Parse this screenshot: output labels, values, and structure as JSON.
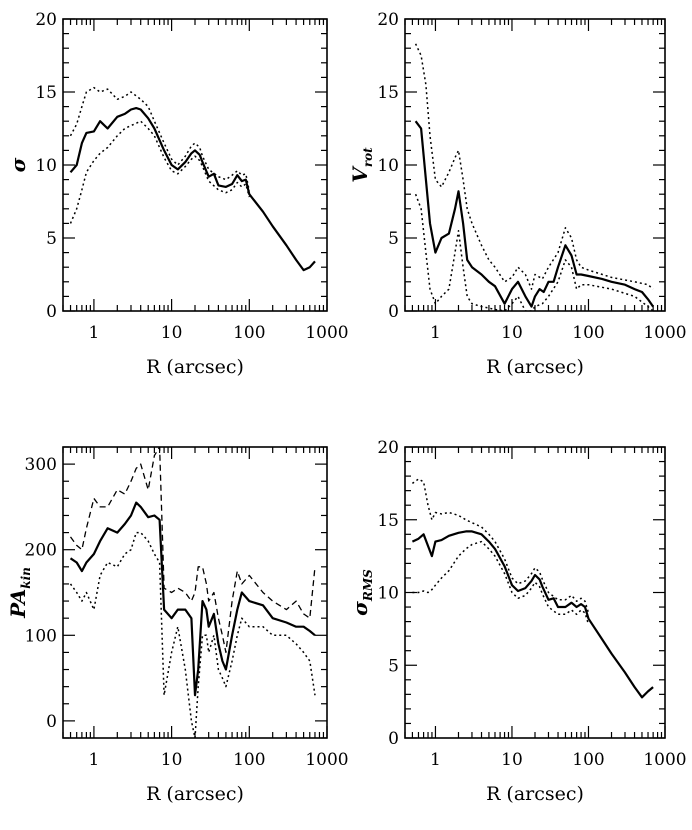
{
  "chart_data": [
    {
      "type": "line",
      "title": "",
      "xlabel": "R (arcsec)",
      "ylabel": "σ",
      "xscale": "log",
      "xlim": [
        0.4,
        1000
      ],
      "ylim": [
        0,
        20
      ],
      "xticks": [
        "1",
        "10",
        "100",
        "1000"
      ],
      "yticks": [
        "0",
        "5",
        "10",
        "15",
        "20"
      ],
      "grid": false,
      "series": [
        {
          "style": "solid",
          "x": [
            0.5,
            0.6,
            0.7,
            0.8,
            1.0,
            1.2,
            1.5,
            2,
            2.5,
            3,
            3.5,
            4,
            5,
            6,
            8,
            10,
            12,
            15,
            18,
            20,
            23,
            25,
            30,
            35,
            40,
            50,
            60,
            70,
            80,
            90,
            100,
            150,
            200,
            300,
            400,
            500,
            600,
            700
          ],
          "y": [
            9.5,
            10,
            11.5,
            12.2,
            12.3,
            13,
            12.5,
            13.3,
            13.5,
            13.8,
            13.9,
            13.8,
            13.2,
            12.5,
            11,
            10,
            9.7,
            10.2,
            10.8,
            11,
            10.7,
            10.2,
            9.2,
            9.4,
            8.6,
            8.5,
            8.7,
            9.3,
            8.9,
            9,
            8,
            6.8,
            5.8,
            4.5,
            3.5,
            2.8,
            3,
            3.4
          ]
        },
        {
          "style": "dotted",
          "x": [
            0.5,
            0.6,
            0.7,
            0.8,
            1.0,
            1.2,
            1.5,
            2,
            2.5,
            3,
            4,
            5,
            6,
            8,
            10,
            12,
            15,
            18,
            20,
            23,
            25,
            30,
            40,
            50,
            60,
            70,
            80,
            90,
            100
          ],
          "y": [
            12,
            12.8,
            14,
            15,
            15.3,
            15,
            15.2,
            14.5,
            14.7,
            15,
            14.5,
            14,
            13,
            11.5,
            10.4,
            10,
            10.6,
            11.3,
            11.5,
            11.2,
            10.6,
            9.7,
            9.2,
            9,
            9.3,
            9.6,
            9.3,
            9.4,
            8.2
          ]
        },
        {
          "style": "dotted",
          "x": [
            0.5,
            0.6,
            0.7,
            0.8,
            1.0,
            1.2,
            1.5,
            2,
            2.5,
            3,
            4,
            5,
            6,
            8,
            10,
            12,
            15,
            18,
            20,
            23,
            25,
            30,
            40,
            50,
            60,
            70,
            80,
            90,
            100
          ],
          "y": [
            6,
            7,
            8.3,
            9.5,
            10.3,
            10.8,
            11.2,
            12,
            12.5,
            12.7,
            13,
            12.5,
            12,
            10.5,
            9.6,
            9.4,
            9.9,
            10.4,
            10.6,
            10.3,
            9.9,
            8.9,
            8.3,
            8.1,
            8.3,
            8.8,
            8.5,
            8.7,
            7.8
          ]
        }
      ]
    },
    {
      "type": "line",
      "title": "",
      "xlabel": "R (arcsec)",
      "ylabel": "V rot",
      "xscale": "log",
      "xlim": [
        0.4,
        1000
      ],
      "ylim": [
        0,
        20
      ],
      "xticks": [
        "1",
        "10",
        "100",
        "1000"
      ],
      "yticks": [
        "0",
        "5",
        "10",
        "15",
        "20"
      ],
      "grid": false,
      "series": [
        {
          "style": "solid",
          "x": [
            0.55,
            0.65,
            0.75,
            0.85,
            1.0,
            1.2,
            1.5,
            1.8,
            2.0,
            2.3,
            2.6,
            3,
            4,
            5,
            6,
            8,
            10,
            12,
            15,
            18,
            20,
            23,
            26,
            30,
            35,
            40,
            50,
            60,
            70,
            80,
            100,
            150,
            200,
            300,
            400,
            500,
            600,
            700
          ],
          "y": [
            13,
            12.5,
            9,
            6,
            4,
            5,
            5.3,
            7,
            8.2,
            6,
            3.5,
            3,
            2.5,
            2,
            1.7,
            0.5,
            1.5,
            2,
            1,
            0.3,
            1,
            1.5,
            1.3,
            2,
            2,
            3,
            4.5,
            3.8,
            2.5,
            2.5,
            2.4,
            2.2,
            2,
            1.8,
            1.5,
            1.3,
            0.8,
            0.3
          ]
        },
        {
          "style": "dotted",
          "x": [
            0.55,
            0.65,
            0.75,
            0.85,
            1.0,
            1.2,
            1.5,
            1.8,
            2.0,
            2.3,
            2.6,
            3,
            4,
            5,
            6,
            8,
            10,
            12,
            15,
            18,
            20,
            25,
            30,
            40,
            50,
            60,
            70,
            80,
            100,
            200,
            400,
            600,
            700
          ],
          "y": [
            18.3,
            17.5,
            15.5,
            12,
            9,
            8.5,
            9.5,
            10.5,
            11,
            9,
            7,
            6,
            4.5,
            3.5,
            3,
            2,
            2.3,
            3,
            2.5,
            1.5,
            2.5,
            2.2,
            3,
            4,
            5.7,
            5,
            3.5,
            3,
            2.8,
            2.3,
            2,
            1.8,
            1.5
          ]
        },
        {
          "style": "dotted",
          "x": [
            0.55,
            0.65,
            0.75,
            0.85,
            1.0,
            1.2,
            1.5,
            1.8,
            2.0,
            2.3,
            2.6,
            3,
            4,
            5,
            6,
            8,
            10,
            12,
            15,
            18,
            20,
            25,
            30,
            40,
            50,
            60,
            70,
            80,
            100,
            200,
            400,
            600,
            700
          ],
          "y": [
            8,
            7,
            4,
            1.5,
            0.5,
            1,
            1.5,
            4,
            5.5,
            3,
            1,
            0.5,
            0.3,
            0.2,
            0.1,
            0,
            0.5,
            1,
            0,
            0,
            0.3,
            0.5,
            1,
            2,
            3.5,
            3,
            1.5,
            1.8,
            1.8,
            1.5,
            1,
            0.3,
            0
          ]
        }
      ]
    },
    {
      "type": "line",
      "title": "",
      "xlabel": "R (arcsec)",
      "ylabel": "PA kin",
      "xscale": "log",
      "xlim": [
        0.4,
        1000
      ],
      "ylim": [
        -20,
        320
      ],
      "xticks": [
        "1",
        "10",
        "100",
        "1000"
      ],
      "yticks": [
        "0",
        "100",
        "200",
        "300"
      ],
      "grid": false,
      "series": [
        {
          "style": "solid",
          "x": [
            0.5,
            0.6,
            0.7,
            0.8,
            1.0,
            1.2,
            1.5,
            2,
            2.5,
            3,
            3.5,
            4,
            5,
            6,
            7,
            8,
            10,
            12,
            15,
            18,
            20,
            22,
            25,
            28,
            30,
            35,
            40,
            45,
            50,
            60,
            70,
            80,
            100,
            150,
            200,
            300,
            400,
            500,
            600,
            700
          ],
          "y": [
            190,
            185,
            175,
            185,
            195,
            210,
            225,
            220,
            230,
            240,
            255,
            250,
            238,
            240,
            235,
            130,
            120,
            130,
            130,
            120,
            30,
            60,
            140,
            130,
            110,
            125,
            90,
            70,
            60,
            100,
            130,
            150,
            140,
            135,
            120,
            115,
            110,
            110,
            105,
            100
          ]
        },
        {
          "style": "dashed",
          "x": [
            0.5,
            0.6,
            0.7,
            0.8,
            1.0,
            1.2,
            1.5,
            2,
            2.5,
            3,
            3.5,
            4,
            5,
            6,
            7,
            8,
            10,
            12,
            15,
            18,
            20,
            22,
            25,
            28,
            30,
            35,
            40,
            45,
            50,
            60,
            70,
            80,
            100,
            150,
            200,
            300,
            400,
            500,
            600,
            700
          ],
          "y": [
            215,
            205,
            200,
            225,
            260,
            250,
            250,
            270,
            265,
            280,
            295,
            300,
            270,
            310,
            320,
            155,
            150,
            155,
            150,
            140,
            150,
            180,
            180,
            160,
            140,
            150,
            120,
            100,
            80,
            140,
            175,
            160,
            170,
            150,
            140,
            130,
            140,
            125,
            120,
            180
          ]
        },
        {
          "style": "dotted",
          "x": [
            0.5,
            0.6,
            0.7,
            0.8,
            1.0,
            1.2,
            1.5,
            2,
            2.5,
            3,
            3.5,
            4,
            5,
            6,
            7,
            8,
            10,
            12,
            15,
            18,
            20,
            22,
            25,
            28,
            30,
            35,
            40,
            45,
            50,
            60,
            70,
            80,
            100,
            150,
            200,
            300,
            400,
            500,
            600,
            700
          ],
          "y": [
            160,
            150,
            140,
            150,
            130,
            170,
            185,
            180,
            195,
            200,
            220,
            220,
            210,
            195,
            185,
            30,
            80,
            110,
            60,
            0,
            -20,
            40,
            100,
            100,
            80,
            100,
            60,
            50,
            40,
            70,
            100,
            120,
            110,
            110,
            100,
            100,
            90,
            80,
            70,
            30
          ]
        }
      ]
    },
    {
      "type": "line",
      "title": "",
      "xlabel": "R (arcsec)",
      "ylabel": "σ RMS",
      "xscale": "log",
      "xlim": [
        0.4,
        1000
      ],
      "ylim": [
        0,
        20
      ],
      "xticks": [
        "1",
        "10",
        "100",
        "1000"
      ],
      "yticks": [
        "0",
        "5",
        "10",
        "15",
        "20"
      ],
      "grid": false,
      "series": [
        {
          "style": "solid",
          "x": [
            0.5,
            0.6,
            0.7,
            0.8,
            0.9,
            1.0,
            1.2,
            1.5,
            2,
            2.5,
            3,
            4,
            5,
            6,
            8,
            10,
            12,
            15,
            18,
            20,
            23,
            25,
            30,
            35,
            40,
            50,
            60,
            70,
            80,
            90,
            100,
            150,
            200,
            300,
            400,
            500,
            600,
            700
          ],
          "y": [
            13.5,
            13.7,
            14,
            13.2,
            12.5,
            13.5,
            13.6,
            13.9,
            14.1,
            14.2,
            14.2,
            14,
            13.5,
            13,
            11.8,
            10.5,
            10.1,
            10.3,
            10.8,
            11.2,
            10.9,
            10.4,
            9.5,
            9.6,
            9,
            9,
            9.3,
            9,
            9.2,
            9,
            8.2,
            6.8,
            5.8,
            4.5,
            3.5,
            2.8,
            3.2,
            3.5
          ]
        },
        {
          "style": "dotted",
          "x": [
            0.5,
            0.6,
            0.7,
            0.8,
            0.9,
            1.0,
            1.2,
            1.5,
            2,
            2.5,
            3,
            4,
            5,
            6,
            8,
            10,
            12,
            15,
            18,
            20,
            23,
            25,
            30,
            40,
            50,
            60,
            70,
            80,
            90,
            100
          ],
          "y": [
            17.5,
            17.8,
            17.6,
            16,
            15,
            15.5,
            15.4,
            15.5,
            15.3,
            15,
            14.8,
            14.5,
            14,
            13.5,
            12.3,
            11,
            10.6,
            10.8,
            11.3,
            11.7,
            11.4,
            10.9,
            10,
            9.5,
            9.5,
            9.8,
            9.4,
            9.6,
            9.4,
            8.6
          ]
        },
        {
          "style": "dotted",
          "x": [
            0.5,
            0.6,
            0.7,
            0.8,
            0.9,
            1.0,
            1.2,
            1.5,
            2,
            2.5,
            3,
            4,
            5,
            6,
            8,
            10,
            12,
            15,
            18,
            20,
            23,
            25,
            30,
            40,
            50,
            60,
            70,
            80,
            90,
            100
          ],
          "y": [
            10,
            10,
            10.1,
            10,
            10.2,
            10.5,
            11,
            11.5,
            12.5,
            13,
            13.3,
            13.5,
            13,
            12.5,
            11.3,
            10,
            9.6,
            9.8,
            10.3,
            10.7,
            10.4,
            9.9,
            9,
            8.5,
            8.5,
            8.8,
            8.5,
            8.8,
            8.6,
            7.8
          ]
        }
      ]
    }
  ]
}
